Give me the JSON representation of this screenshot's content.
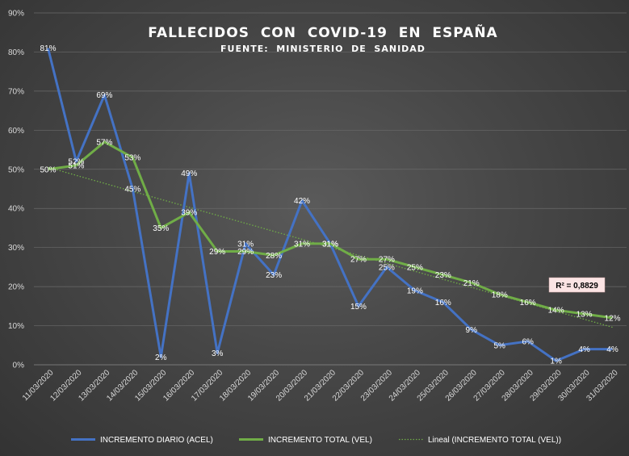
{
  "chart_data": {
    "type": "line",
    "title": "FALLECIDOS  CON  COVID-19  EN  ESPAÑA",
    "subtitle": "FUENTE:  MINISTERIO  DE  SANIDAD",
    "x": [
      "11/03/2020",
      "12/03/2020",
      "13/03/2020",
      "14/03/2020",
      "15/03/2020",
      "16/03/2020",
      "17/03/2020",
      "18/03/2020",
      "19/03/2020",
      "20/03/2020",
      "21/03/2020",
      "22/03/2020",
      "23/03/2020",
      "24/03/2020",
      "25/03/2020",
      "26/03/2020",
      "27/03/2020",
      "28/03/2020",
      "29/03/2020",
      "30/03/2020",
      "31/03/2020"
    ],
    "y_ticks": [
      "0%",
      "10%",
      "20%",
      "30%",
      "40%",
      "50%",
      "60%",
      "70%",
      "80%",
      "90%"
    ],
    "ylim": [
      0,
      90
    ],
    "grid": "horizontal",
    "legend_position": "bottom",
    "series": [
      {
        "name": "INCREMENTO DIARIO (ACEL)",
        "color": "#4472C4",
        "values": [
          81,
          52,
          69,
          45,
          2,
          49,
          3,
          31,
          23,
          42,
          31,
          15,
          25,
          19,
          16,
          9,
          5,
          6,
          1,
          4,
          4
        ],
        "labels": [
          "81%",
          "52%",
          "69%",
          "45%",
          "2%",
          "49%",
          "3%",
          "31%",
          "23%",
          "42%",
          "31%",
          "15%",
          "25%",
          "19%",
          "16%",
          "9%",
          "5%",
          "6%",
          "1%",
          "4%",
          "4%"
        ]
      },
      {
        "name": "INCREMENTO TOTAL (VEL)",
        "color": "#70AD47",
        "values": [
          50,
          51,
          57,
          53,
          35,
          39,
          29,
          29,
          28,
          31,
          31,
          27,
          27,
          25,
          23,
          21,
          18,
          16,
          14,
          13,
          12
        ],
        "labels": [
          "50%",
          "51%",
          "57%",
          "53%",
          "35%",
          "39%",
          "29%",
          "29%",
          "28%",
          "31%",
          "31%",
          "27%",
          "27%",
          "25%",
          "23%",
          "21%",
          "18%",
          "16%",
          "14%",
          "13%",
          "12%"
        ]
      }
    ],
    "trendline": {
      "name": "Lineal (INCREMENTO TOTAL (VEL))",
      "color": "#70AD47",
      "style": "dotted",
      "start": 50.5,
      "end": 9.6,
      "r2_label": "R² = 0,8829"
    }
  }
}
